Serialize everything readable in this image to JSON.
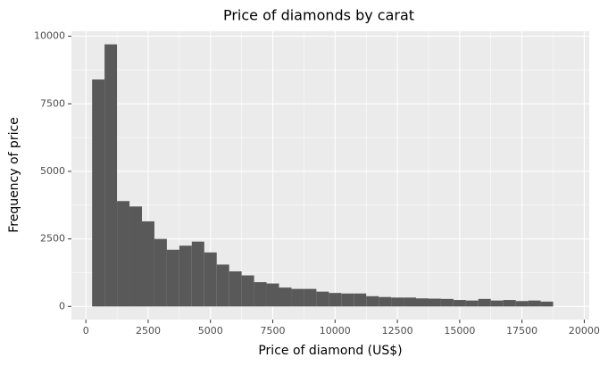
{
  "chart_data": {
    "type": "histogram",
    "title": "Price of diamonds by carat",
    "x_label": "Price of diamond (US$)",
    "y_label": "Frequency of price",
    "bins": [
      250,
      750,
      1250,
      1750,
      2250,
      2750,
      3250,
      3750,
      4250,
      4750,
      5250,
      5750,
      6250,
      6750,
      7250,
      7750,
      8250,
      8750,
      9250,
      9750,
      10250,
      10750,
      11250,
      11750,
      12250,
      12750,
      13250,
      13750,
      14250,
      14750,
      15250,
      15750,
      16250,
      16750,
      17250,
      17750,
      18250,
      18750
    ],
    "values": [
      8400,
      9700,
      3900,
      3700,
      3150,
      2500,
      2100,
      2250,
      2400,
      2000,
      1550,
      1300,
      1150,
      900,
      850,
      700,
      650,
      650,
      550,
      500,
      480,
      480,
      380,
      350,
      330,
      330,
      300,
      290,
      280,
      240,
      220,
      280,
      220,
      240,
      200,
      220,
      180
    ],
    "color": "#595959",
    "xlim": [
      -580,
      20200
    ],
    "ylim": [
      -485,
      10185
    ],
    "xticks": [
      0,
      2500,
      5000,
      7500,
      10000,
      12500,
      15000,
      17500,
      20000
    ],
    "yticks": [
      0,
      2500,
      5000,
      7500,
      10000
    ],
    "grid": true,
    "background": "#ebebeb"
  }
}
